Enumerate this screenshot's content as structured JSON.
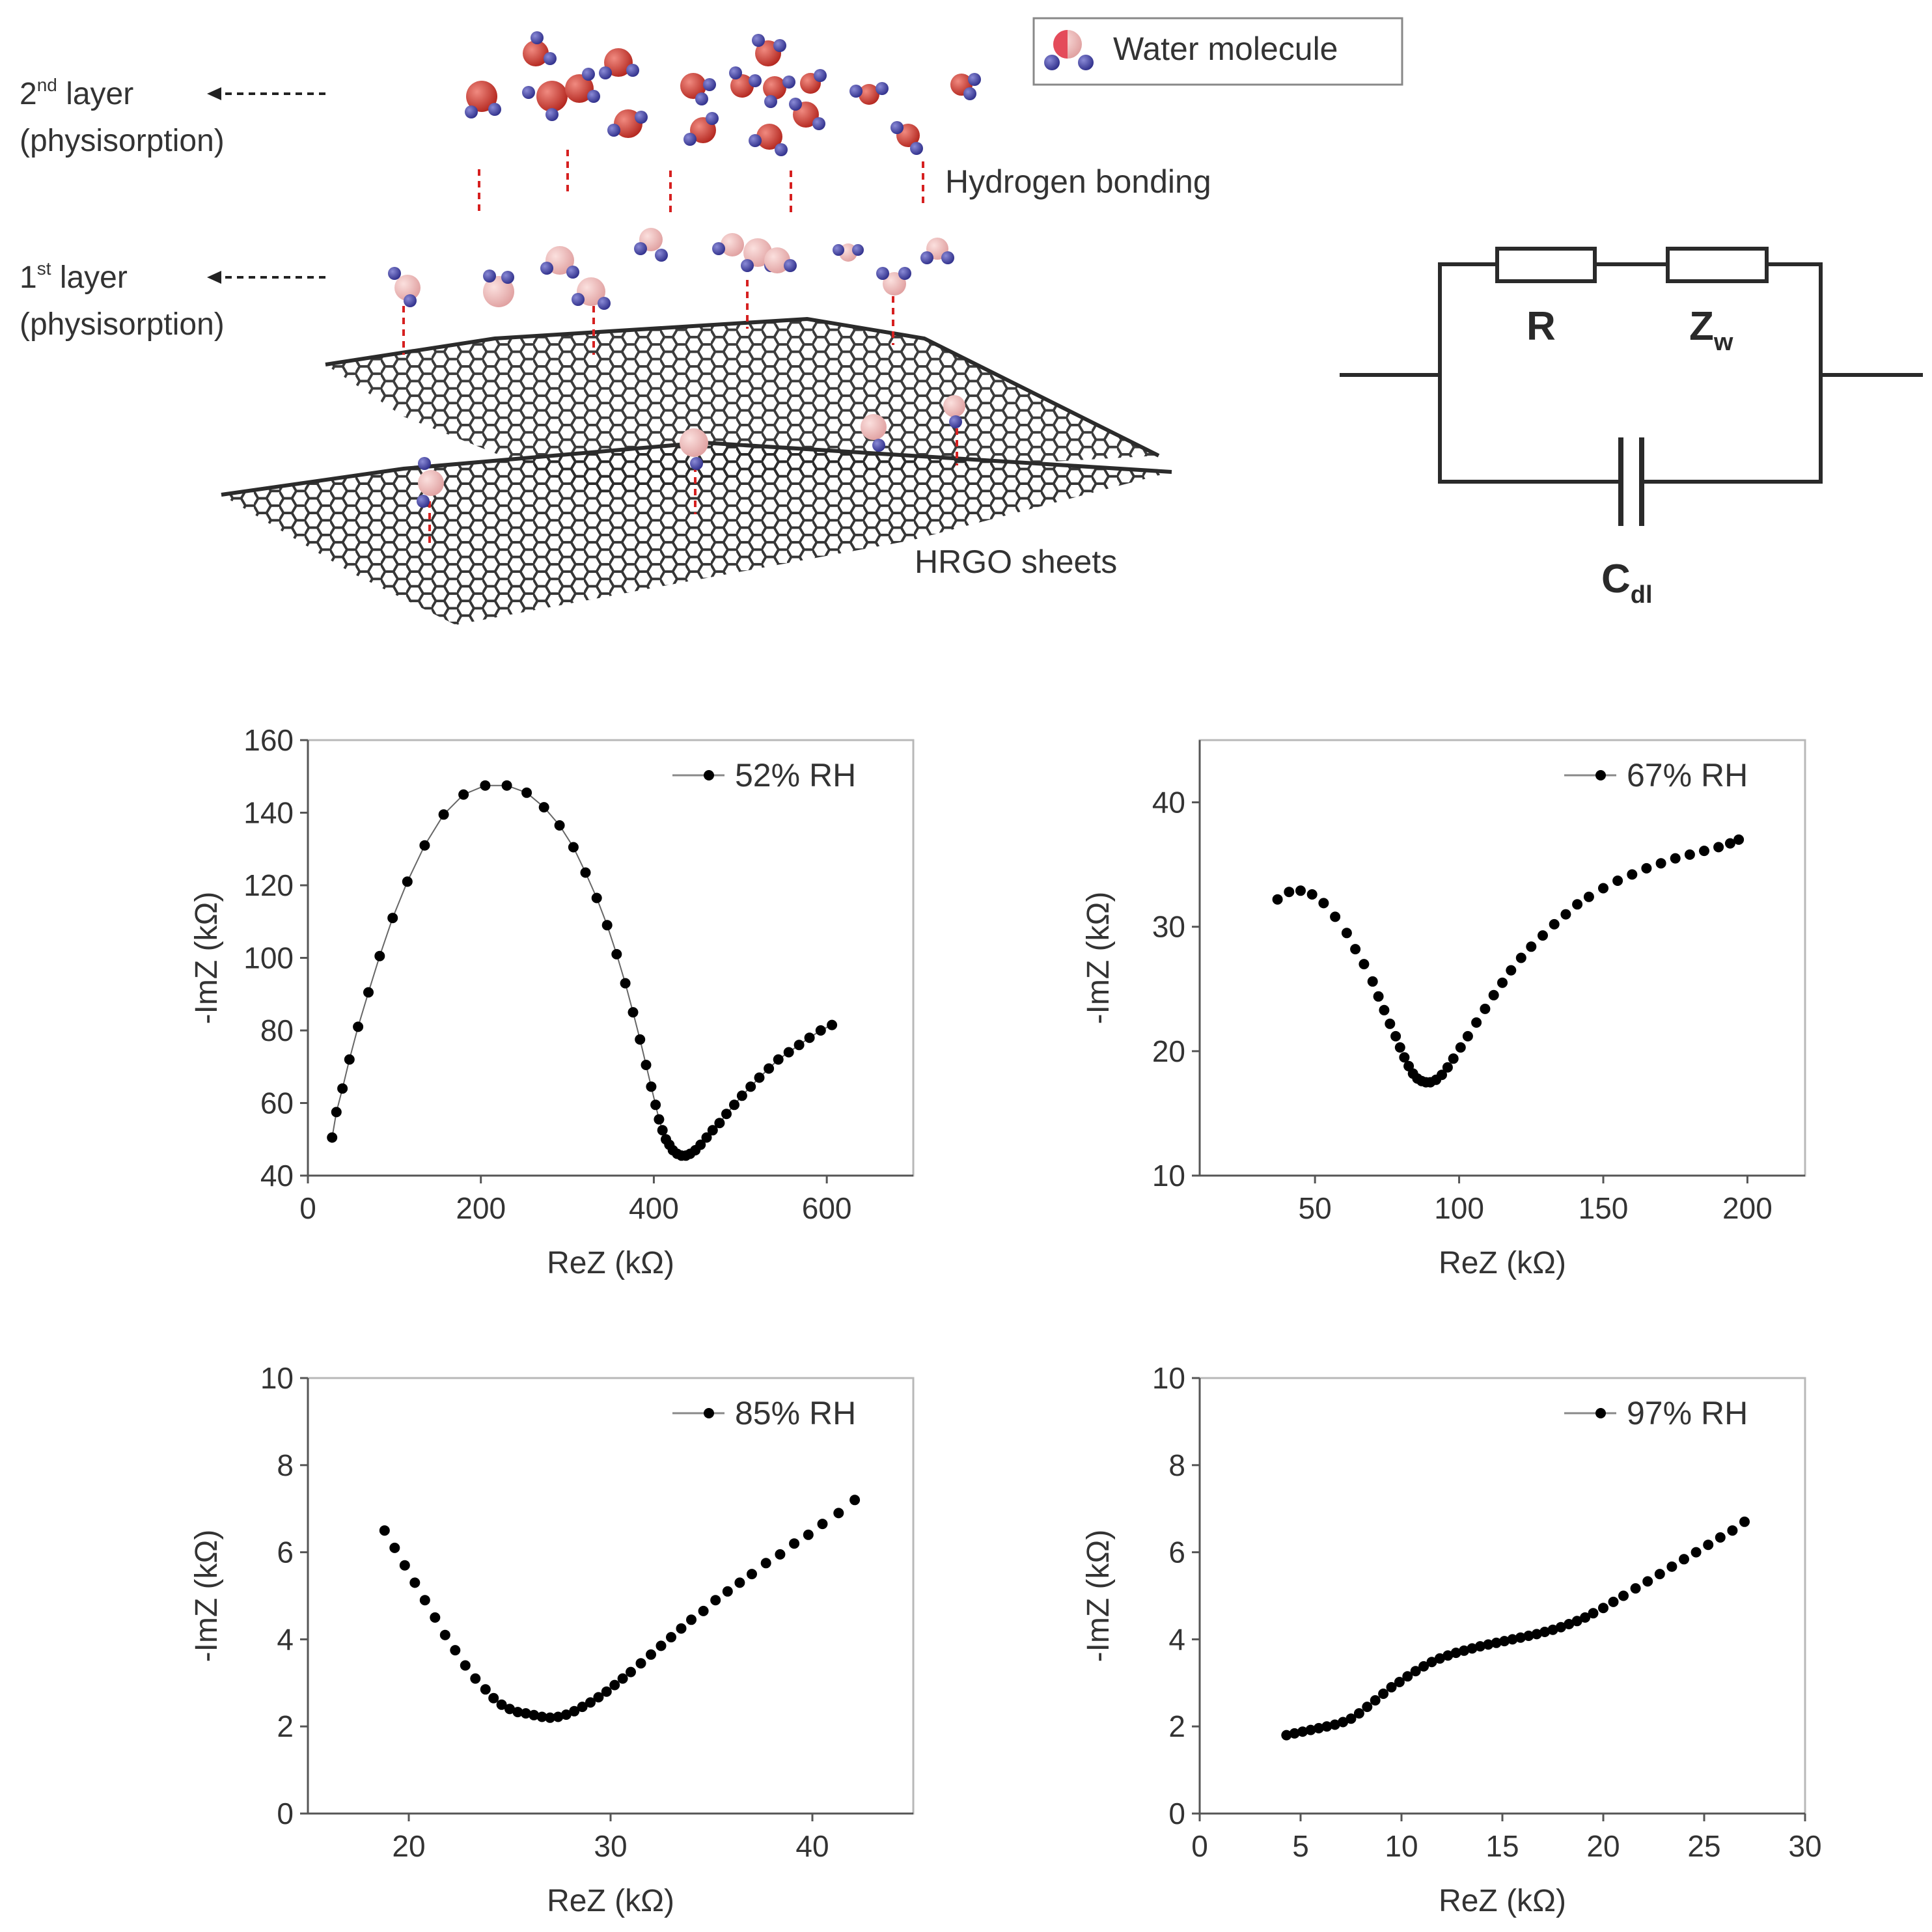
{
  "schematic": {
    "layer2_label": "2",
    "layer2_sup": "nd",
    "layer2_word": " layer",
    "layer2_sub": "(physisorption)",
    "layer1_label": "1",
    "layer1_sup": "st",
    "layer1_word": " layer",
    "layer1_sub": "(physisorption)",
    "hbond_label": "Hydrogen bonding",
    "sheets_label": "HRGO sheets",
    "legend_label": "Water molecule"
  },
  "circuit": {
    "r_label": "R",
    "zw_label": "Z",
    "zw_sub": "w",
    "cdl_label": "C",
    "cdl_sub": "dl"
  },
  "colors": {
    "oxygen_dark": "#c0392b",
    "oxygen_light": "#e8a5a5",
    "hydrogen": "#3b3b9e",
    "hbond": "#d62020",
    "sheet": "#2b2b2b",
    "marker": "#000000",
    "axis": "#555555"
  },
  "chart_data": [
    {
      "type": "scatter",
      "title": "",
      "legend": "52% RH",
      "xlabel": "ReZ (kΩ)",
      "ylabel": "-ImZ (kΩ)",
      "xlim": [
        0,
        700
      ],
      "ylim": [
        40,
        160
      ],
      "xticks": [
        0,
        200,
        400,
        600
      ],
      "yticks": [
        40,
        60,
        80,
        100,
        120,
        140,
        160
      ],
      "line": true,
      "x": [
        28,
        33,
        40,
        48,
        58,
        70,
        83,
        98,
        115,
        135,
        157,
        180,
        205,
        230,
        253,
        273,
        291,
        307,
        321,
        334,
        346,
        357,
        367,
        376,
        384,
        391,
        397,
        402,
        406,
        410,
        414,
        418,
        422,
        427,
        432,
        437,
        442,
        448,
        454,
        461,
        468,
        476,
        484,
        493,
        502,
        512,
        522,
        533,
        544,
        556,
        568,
        580,
        593,
        606
      ],
      "y": [
        50.5,
        57.5,
        64,
        72,
        81,
        90.5,
        100.5,
        111,
        121,
        131,
        139.5,
        145,
        147.5,
        147.5,
        145.5,
        141.5,
        136.5,
        130.5,
        123.5,
        116.5,
        109,
        101,
        93,
        85,
        77.5,
        70.5,
        64.5,
        59.5,
        55.5,
        52.5,
        50,
        48.5,
        47,
        46,
        45.5,
        45.5,
        46,
        47,
        48.5,
        50.5,
        52.5,
        54.5,
        57,
        59.5,
        62,
        64.5,
        67,
        69.5,
        72,
        74,
        76,
        78,
        80,
        81.5
      ]
    },
    {
      "type": "scatter",
      "title": "",
      "legend": "67% RH",
      "xlabel": "ReZ (kΩ)",
      "ylabel": "-ImZ (kΩ)",
      "xlim": [
        10,
        220
      ],
      "ylim": [
        10,
        45
      ],
      "xticks": [
        50,
        100,
        150,
        200
      ],
      "yticks": [
        10,
        20,
        30,
        40
      ],
      "line": false,
      "x": [
        37,
        41,
        45,
        49,
        53,
        57,
        61,
        64,
        67,
        70,
        72,
        74,
        76,
        78,
        79.5,
        81,
        82.5,
        84,
        85.5,
        87,
        88.5,
        90,
        92,
        94,
        96,
        98,
        100.5,
        103,
        106,
        109,
        112,
        115,
        118,
        121.5,
        125,
        129,
        133,
        137,
        141,
        145,
        150,
        155,
        160,
        165,
        170,
        175,
        180,
        185,
        190,
        194,
        197
      ],
      "y": [
        32.2,
        32.8,
        32.9,
        32.6,
        31.9,
        30.8,
        29.5,
        28.2,
        27,
        25.6,
        24.4,
        23.3,
        22.2,
        21.2,
        20.3,
        19.5,
        18.8,
        18.2,
        17.8,
        17.6,
        17.5,
        17.5,
        17.7,
        18.1,
        18.7,
        19.4,
        20.3,
        21.2,
        22.3,
        23.4,
        24.5,
        25.5,
        26.5,
        27.5,
        28.4,
        29.3,
        30.2,
        31,
        31.8,
        32.4,
        33.1,
        33.7,
        34.2,
        34.7,
        35.1,
        35.5,
        35.8,
        36.1,
        36.4,
        36.7,
        37
      ]
    },
    {
      "type": "scatter",
      "title": "",
      "legend": "85% RH",
      "xlabel": "ReZ (kΩ)",
      "ylabel": "-ImZ (kΩ)",
      "xlim": [
        15,
        45
      ],
      "ylim": [
        0,
        10
      ],
      "xticks": [
        20,
        30,
        40
      ],
      "yticks": [
        0,
        2,
        4,
        6,
        8,
        10
      ],
      "line": false,
      "x": [
        18.8,
        19.3,
        19.8,
        20.3,
        20.8,
        21.3,
        21.8,
        22.3,
        22.8,
        23.3,
        23.8,
        24.2,
        24.6,
        25,
        25.4,
        25.8,
        26.2,
        26.6,
        27,
        27.4,
        27.8,
        28.2,
        28.6,
        29,
        29.4,
        29.8,
        30.2,
        30.6,
        31,
        31.5,
        32,
        32.5,
        33,
        33.5,
        34,
        34.6,
        35.2,
        35.8,
        36.4,
        37,
        37.7,
        38.4,
        39.1,
        39.8,
        40.5,
        41.3,
        42.1
      ],
      "y": [
        6.5,
        6.1,
        5.7,
        5.3,
        4.9,
        4.5,
        4.1,
        3.75,
        3.4,
        3.1,
        2.85,
        2.65,
        2.5,
        2.4,
        2.33,
        2.3,
        2.26,
        2.22,
        2.2,
        2.22,
        2.27,
        2.35,
        2.45,
        2.55,
        2.67,
        2.8,
        2.95,
        3.1,
        3.25,
        3.45,
        3.65,
        3.85,
        4.05,
        4.25,
        4.45,
        4.65,
        4.9,
        5.1,
        5.3,
        5.5,
        5.75,
        5.95,
        6.2,
        6.4,
        6.65,
        6.9,
        7.2
      ]
    },
    {
      "type": "scatter",
      "title": "",
      "legend": "97% RH",
      "xlabel": "ReZ (kΩ)",
      "ylabel": "-ImZ (kΩ)",
      "xlim": [
        0,
        30
      ],
      "ylim": [
        0,
        10
      ],
      "xticks": [
        0,
        5,
        10,
        15,
        20,
        25,
        30
      ],
      "yticks": [
        0,
        2,
        4,
        6,
        8,
        10
      ],
      "line": false,
      "x": [
        4.3,
        4.7,
        5.1,
        5.5,
        5.9,
        6.3,
        6.7,
        7.1,
        7.5,
        7.9,
        8.3,
        8.7,
        9.1,
        9.5,
        9.9,
        10.3,
        10.7,
        11.1,
        11.5,
        11.9,
        12.3,
        12.7,
        13.1,
        13.5,
        13.9,
        14.3,
        14.7,
        15.1,
        15.5,
        15.9,
        16.3,
        16.7,
        17.1,
        17.5,
        17.9,
        18.3,
        18.7,
        19.1,
        19.5,
        20,
        20.5,
        21,
        21.6,
        22.2,
        22.8,
        23.4,
        24,
        24.6,
        25.2,
        25.8,
        26.4,
        27
      ],
      "y": [
        1.8,
        1.84,
        1.88,
        1.92,
        1.96,
        2.0,
        2.04,
        2.1,
        2.18,
        2.3,
        2.45,
        2.6,
        2.75,
        2.9,
        3.02,
        3.15,
        3.27,
        3.38,
        3.48,
        3.56,
        3.63,
        3.69,
        3.74,
        3.79,
        3.84,
        3.88,
        3.92,
        3.96,
        4.0,
        4.04,
        4.08,
        4.12,
        4.17,
        4.22,
        4.28,
        4.35,
        4.42,
        4.5,
        4.6,
        4.72,
        4.86,
        5.0,
        5.17,
        5.33,
        5.5,
        5.67,
        5.84,
        6.0,
        6.17,
        6.34,
        6.5,
        6.7
      ]
    }
  ]
}
